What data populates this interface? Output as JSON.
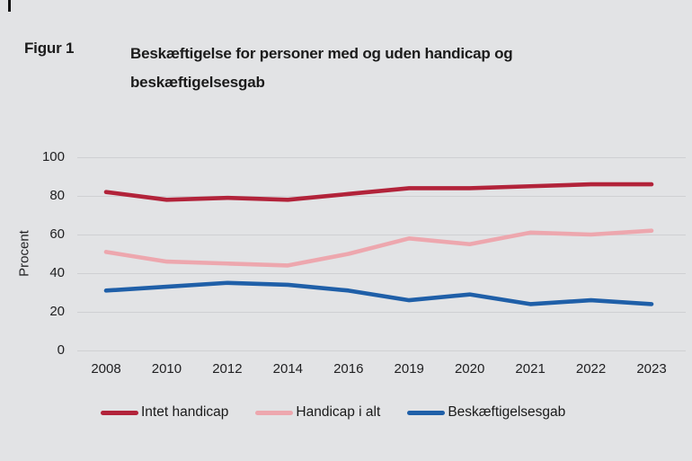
{
  "figure": {
    "label": "Figur 1",
    "title_line1": "Beskæftigelse for personer med og uden handicap og",
    "title_line2": "beskæftigelsesgab"
  },
  "chart_data": {
    "type": "line",
    "categories": [
      "2008",
      "2010",
      "2012",
      "2014",
      "2016",
      "2019",
      "2020",
      "2021",
      "2022",
      "2023"
    ],
    "series": [
      {
        "name": "Intet handicap",
        "color": "#b2233a",
        "values": [
          82,
          78,
          79,
          78,
          81,
          84,
          84,
          85,
          86,
          86
        ]
      },
      {
        "name": "Handicap i alt",
        "color": "#eda7ae",
        "values": [
          51,
          46,
          45,
          44,
          50,
          58,
          55,
          61,
          60,
          62
        ]
      },
      {
        "name": "Beskæftigelsesgab",
        "color": "#1f5fa8",
        "values": [
          31,
          33,
          35,
          34,
          31,
          26,
          29,
          24,
          26,
          24
        ]
      }
    ],
    "title": "Beskæftigelse for personer med og uden handicap og beskæftigelsesgab",
    "xlabel": "",
    "ylabel": "Procent",
    "ylim": [
      0,
      100
    ],
    "yticks": [
      0,
      20,
      40,
      60,
      80,
      100
    ],
    "grid": true,
    "legend_position": "bottom"
  },
  "colors": {
    "background": "#e2e3e5",
    "gridline": "#cfd0d3",
    "text": "#1b1b1b"
  }
}
